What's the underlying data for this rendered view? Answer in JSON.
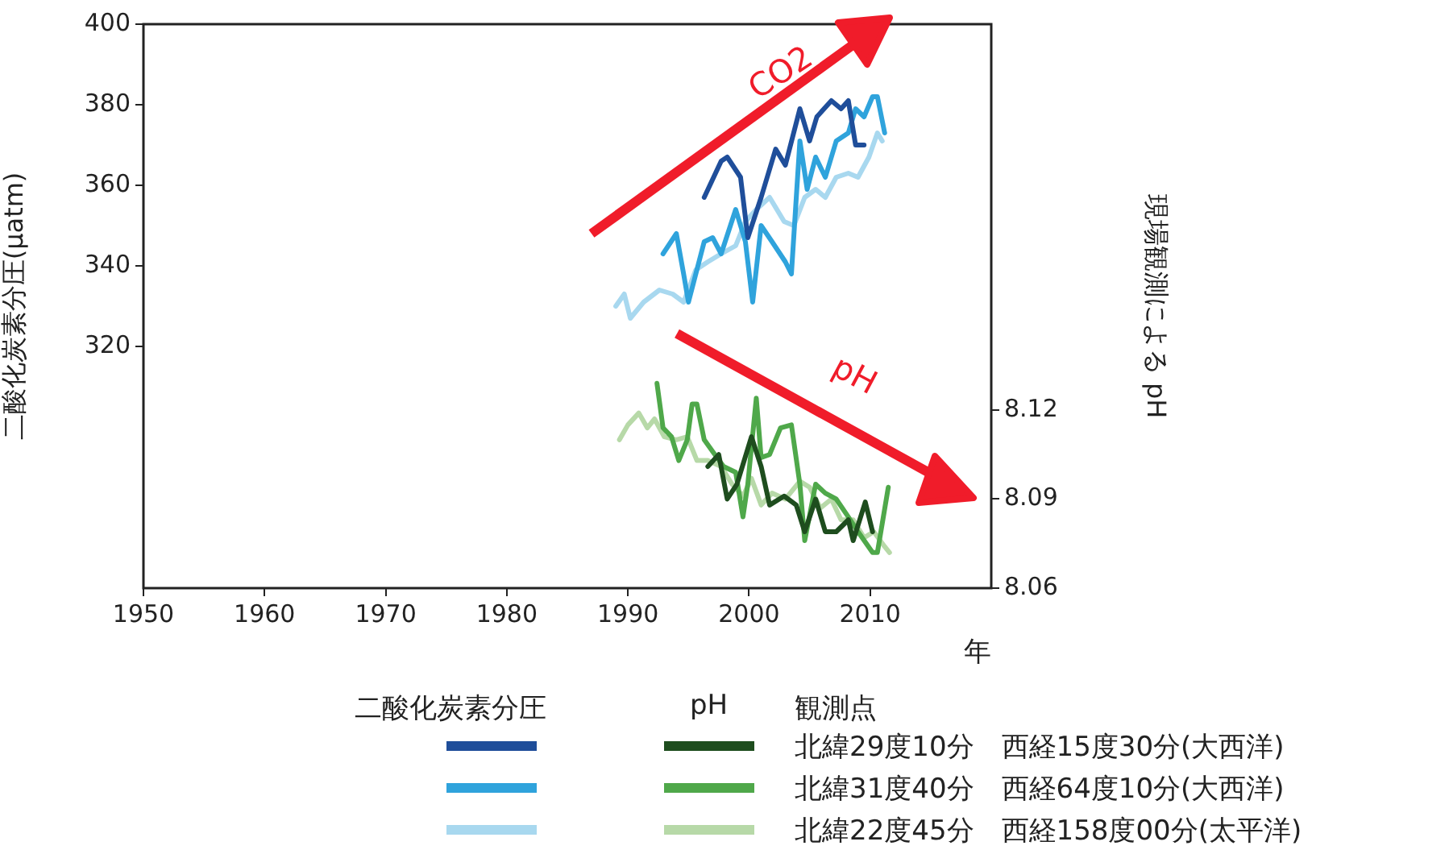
{
  "chart_data": {
    "type": "line",
    "xlabel": "年",
    "ylabel": "二酸化炭素分圧(μatm)",
    "y2label": "現場観測による pH",
    "legend": "bottom",
    "legend_title": "観測点",
    "marker": "none",
    "line_style": "solid",
    "grid": false,
    "xlim": [
      1950,
      2020
    ],
    "xticks": [
      1950,
      1960,
      1970,
      1980,
      1990,
      2000,
      2010
    ],
    "ylim": [
      260,
      400
    ],
    "yticks": [
      320,
      340,
      360,
      380,
      400
    ],
    "y2lim": [
      8.06,
      8.25
    ],
    "y2ticks": [
      8.06,
      8.09,
      8.12
    ],
    "annotations": [
      "CO2",
      "pH",
      "二酸化炭素分圧",
      "pH"
    ],
    "series": [
      {
        "color": "#1f4e9a",
        "x": [
          1996.3,
          1997.7,
          1998.2,
          1999.3,
          1999.9,
          2001,
          2002.2,
          2003,
          2004.2,
          2005,
          2005.6,
          2006.8,
          2007.6,
          2008.2,
          2008.8,
          2009.5
        ],
        "values": [
          357,
          366,
          367,
          362,
          347,
          357,
          369,
          365,
          379,
          371,
          377,
          381,
          379,
          381,
          370,
          370
        ]
      },
      {
        "color": "#2fa3dc",
        "x": [
          1992.9,
          1994,
          1994.6,
          1995,
          1996.3,
          1997,
          1997.7,
          1998.9,
          1999.7,
          2000.3,
          2001,
          2001.9,
          2003,
          2003.5,
          2004.2,
          2004.8,
          2005.5,
          2006.3,
          2007.2,
          2008.2,
          2008.8,
          2009.5,
          2010.2,
          2010.6,
          2011.2
        ],
        "values": [
          343,
          348,
          338,
          331,
          346,
          347,
          343,
          354,
          346,
          331,
          350,
          346,
          341,
          338,
          371,
          359,
          367,
          362,
          371,
          373,
          379,
          377,
          382,
          382,
          373
        ]
      },
      {
        "color": "#a8d8ef",
        "x": [
          1989,
          1989.7,
          1990.2,
          1991.3,
          1992.6,
          1993.7,
          1994.6,
          1995.6,
          1996.6,
          1997.7,
          1998.9,
          1999.7,
          2000.6,
          2001.7,
          2002.9,
          2003.7,
          2004.6,
          2005.5,
          2006.3,
          2007.2,
          2008.2,
          2009,
          2009.9,
          2010.6,
          2011
        ],
        "values": [
          330,
          333,
          327,
          331,
          334,
          333,
          331,
          339,
          341,
          343,
          345,
          351,
          354,
          357,
          351,
          350,
          357,
          359,
          357,
          362,
          363,
          362,
          367,
          373,
          371
        ]
      },
      {
        "name": "北緯29度10分　西経15度30分(大西洋)",
        "color": "#1e4d1e",
        "axis": "y2",
        "x": [
          1996.6,
          1997.5,
          1998.2,
          1999,
          2000.2,
          2001,
          2001.7,
          2002.9,
          2003.9,
          2004.6,
          2005.5,
          2006.3,
          2007.2,
          2008.2,
          2008.6,
          2009.6,
          2010.2
        ],
        "values": [
          8.101,
          8.105,
          8.09,
          8.095,
          8.111,
          8.101,
          8.088,
          8.091,
          8.088,
          8.079,
          8.09,
          8.079,
          8.079,
          8.083,
          8.076,
          8.089,
          8.079
        ]
      },
      {
        "name": "北緯31度40分　西経64度10分(大西洋)",
        "color": "#4fa84a",
        "axis": "y2",
        "x": [
          1992.4,
          1992.9,
          1993.6,
          1994.2,
          1994.9,
          1995.3,
          1995.7,
          1996.3,
          1997,
          1997.9,
          1998.9,
          1999.5,
          1999.9,
          2000.6,
          2001,
          2001.7,
          2002.6,
          2003.5,
          2004.2,
          2004.6,
          2005.5,
          2006.3,
          2007.2,
          2008.2,
          2009,
          2010.2,
          2010.6,
          2011.5
        ],
        "values": [
          8.129,
          8.114,
          8.111,
          8.103,
          8.11,
          8.122,
          8.122,
          8.11,
          8.106,
          8.101,
          8.099,
          8.084,
          8.095,
          8.124,
          8.104,
          8.105,
          8.114,
          8.115,
          8.095,
          8.076,
          8.095,
          8.092,
          8.09,
          8.084,
          8.079,
          8.072,
          8.072,
          8.094
        ]
      },
      {
        "name": "北緯22度45分　西経158度00分(太平洋)",
        "color": "#b7d9a8",
        "axis": "y2",
        "x": [
          1989.3,
          1990,
          1990.9,
          1991.6,
          1992.2,
          1993,
          1994,
          1994.9,
          1995.7,
          1996.6,
          1997.7,
          1998.6,
          1999.5,
          2000.2,
          2001,
          2001.9,
          2003,
          2004.2,
          2005,
          2005.9,
          2006.8,
          2007.6,
          2008.6,
          2009.5,
          2010.3,
          2011.2,
          2011.6
        ],
        "values": [
          8.11,
          8.115,
          8.119,
          8.114,
          8.117,
          8.111,
          8.11,
          8.111,
          8.103,
          8.103,
          8.101,
          8.095,
          8.091,
          8.097,
          8.088,
          8.092,
          8.09,
          8.096,
          8.094,
          8.087,
          8.09,
          8.083,
          8.083,
          8.077,
          8.079,
          8.074,
          8.072
        ]
      }
    ]
  }
}
